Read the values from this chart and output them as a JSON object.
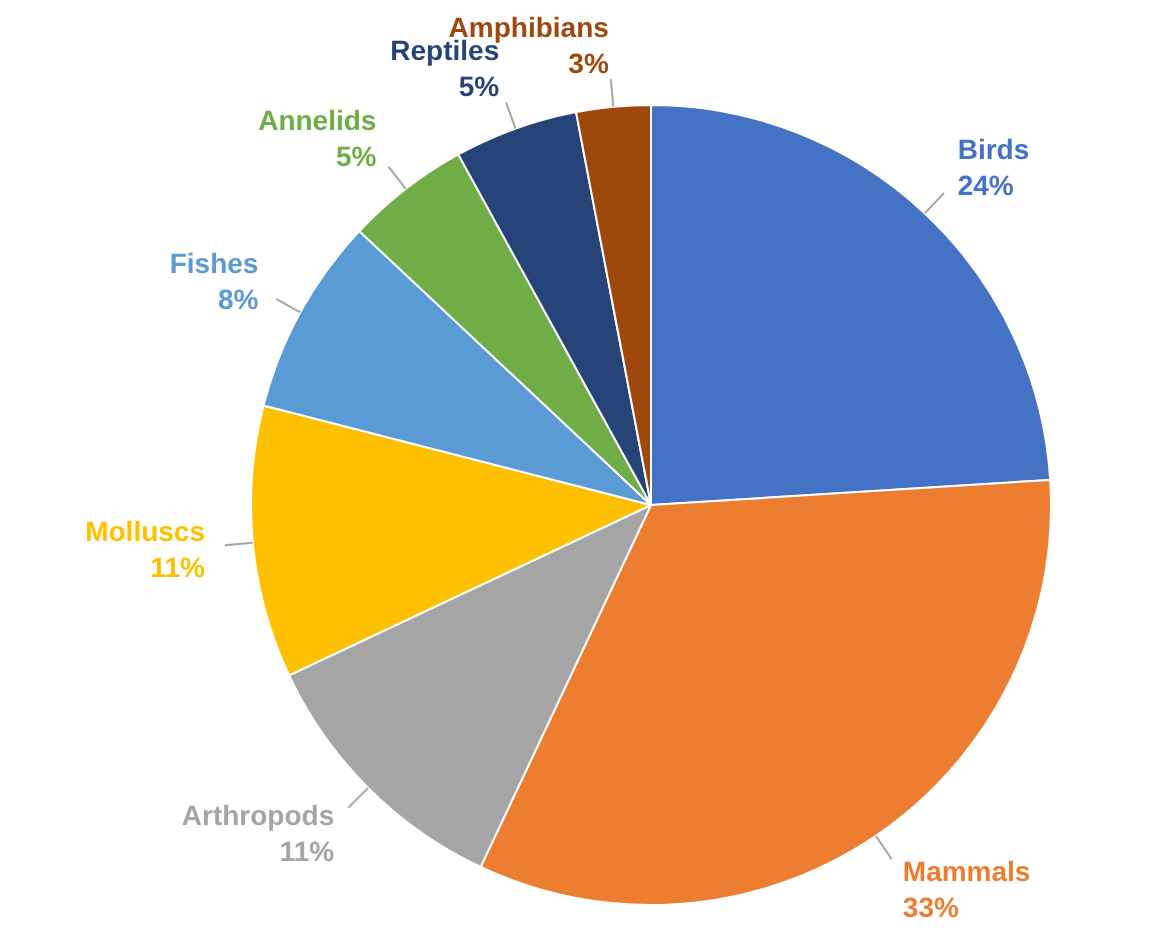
{
  "chart_data": {
    "type": "pie",
    "categories": [
      "Birds",
      "Mammals",
      "Arthropods",
      "Molluscs",
      "Fishes",
      "Annelids",
      "Reptiles",
      "Amphibians"
    ],
    "values": [
      24,
      33,
      11,
      11,
      8,
      5,
      5,
      3
    ],
    "value_labels": [
      "24%",
      "33%",
      "11%",
      "11%",
      "8%",
      "5%",
      "5%",
      "3%"
    ],
    "colors": [
      "#4472c4",
      "#ed7d31",
      "#a5a5a5",
      "#ffc000",
      "#5b9bd5",
      "#70ad47",
      "#264478",
      "#9e480e"
    ]
  }
}
